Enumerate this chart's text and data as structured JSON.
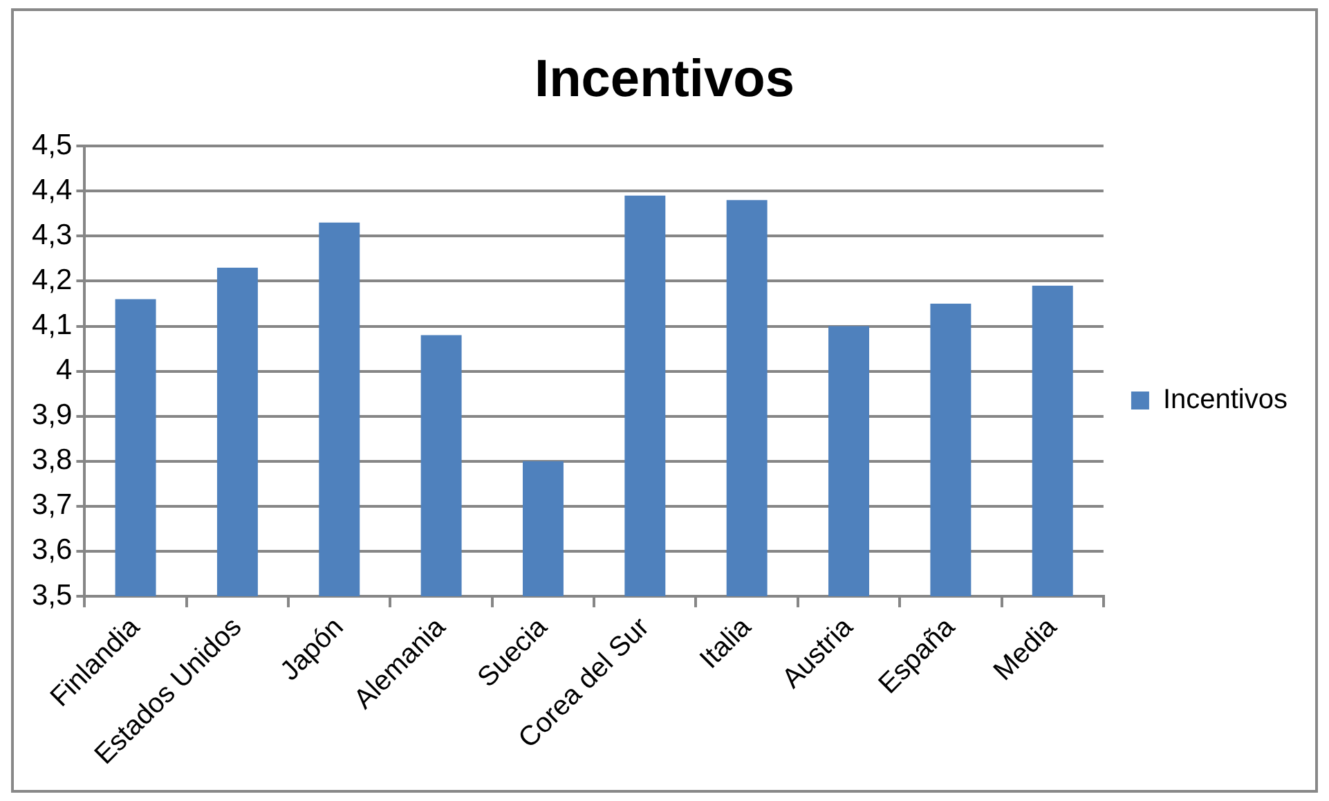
{
  "chart_data": {
    "type": "bar",
    "title": "Incentivos",
    "categories": [
      "Finlandia",
      "Estados Unidos",
      "Japón",
      "Alemania",
      "Suecia",
      "Corea del Sur",
      "Italia",
      "Austria",
      "España",
      "Media"
    ],
    "series": [
      {
        "name": "Incentivos",
        "color": "#4f81bd",
        "values": [
          4.16,
          4.23,
          4.33,
          4.08,
          3.8,
          4.39,
          4.38,
          4.1,
          4.15,
          4.19
        ]
      }
    ],
    "ylim": [
      3.5,
      4.5
    ],
    "yticks": [
      {
        "value": 3.5,
        "label": "3,5"
      },
      {
        "value": 3.6,
        "label": "3,6"
      },
      {
        "value": 3.7,
        "label": "3,7"
      },
      {
        "value": 3.8,
        "label": "3,8"
      },
      {
        "value": 3.9,
        "label": "3,9"
      },
      {
        "value": 4,
        "label": "4"
      },
      {
        "value": 4.1,
        "label": "4,1"
      },
      {
        "value": 4.2,
        "label": "4,2"
      },
      {
        "value": 4.3,
        "label": "4,3"
      },
      {
        "value": 4.4,
        "label": "4,4"
      },
      {
        "value": 4.5,
        "label": "4,5"
      }
    ],
    "grid": "y",
    "legend": "right"
  }
}
